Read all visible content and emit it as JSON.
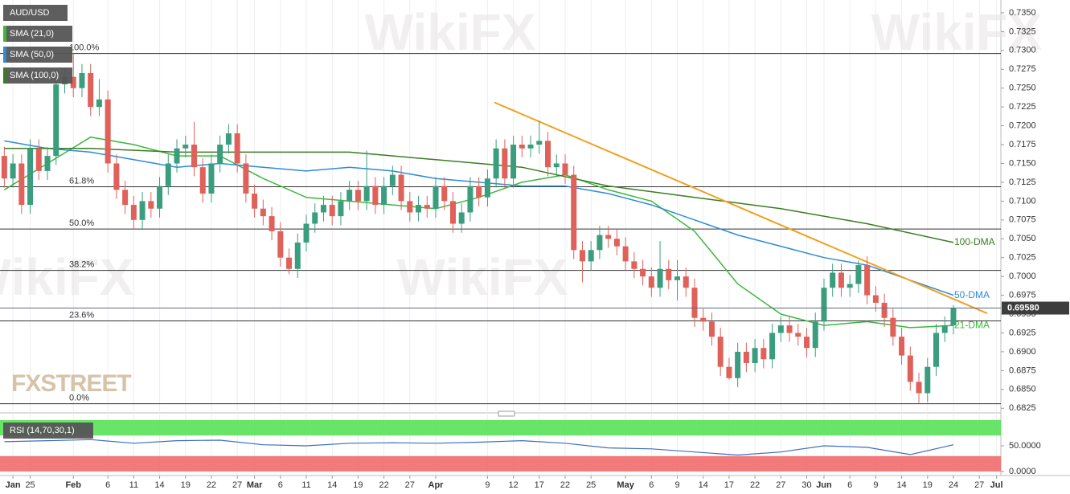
{
  "chart_data": [
    {
      "type": "candlestick",
      "series": [
        {
          "name": "AUD/USD",
          "up_color": "#3a9e7e",
          "down_color": "#e0605a",
          "x": [
            0,
            1,
            2,
            3,
            4,
            5,
            6,
            7,
            8,
            9,
            10,
            11,
            12,
            13,
            14,
            15,
            16,
            17,
            18,
            19,
            20,
            21,
            22,
            23,
            24,
            25,
            26,
            27,
            28,
            29,
            30,
            31,
            32,
            33,
            34,
            35,
            36,
            37,
            38,
            39,
            40,
            41,
            42,
            43,
            44,
            45,
            46,
            47,
            48,
            49,
            50,
            51,
            52,
            53,
            54,
            55,
            56,
            57,
            58,
            59,
            60,
            61,
            62,
            63,
            64,
            65,
            66,
            67,
            68,
            69,
            70,
            71,
            72,
            73,
            74,
            75,
            76,
            77,
            78,
            79,
            80,
            81,
            82,
            83,
            84,
            85,
            86,
            87,
            88,
            89,
            90,
            91,
            92,
            93,
            94,
            95,
            96,
            97,
            98,
            99,
            100,
            101,
            102,
            103,
            104,
            105,
            106,
            107,
            108,
            109,
            110
          ],
          "open": [
            0.716,
            0.713,
            0.715,
            0.7095,
            0.717,
            0.714,
            0.716,
            0.7255,
            0.7265,
            0.725,
            0.727,
            0.7225,
            0.7235,
            0.715,
            0.7115,
            0.7095,
            0.7075,
            0.71,
            0.709,
            0.712,
            0.715,
            0.717,
            0.7175,
            0.7145,
            0.711,
            0.715,
            0.7175,
            0.719,
            0.715,
            0.711,
            0.709,
            0.708,
            0.706,
            0.7025,
            0.701,
            0.7045,
            0.707,
            0.7085,
            0.7095,
            0.708,
            0.71,
            0.7115,
            0.71,
            0.712,
            0.7095,
            0.712,
            0.7135,
            0.71,
            0.7085,
            0.7095,
            0.709,
            0.712,
            0.71,
            0.707,
            0.7085,
            0.712,
            0.7105,
            0.713,
            0.717,
            0.713,
            0.7175,
            0.717,
            0.7175,
            0.718,
            0.7145,
            0.715,
            0.7135,
            0.7035,
            0.702,
            0.7035,
            0.7055,
            0.705,
            0.704,
            0.702,
            0.701,
            0.7,
            0.6985,
            0.701,
            0.6995,
            0.7,
            0.6985,
            0.6945,
            0.694,
            0.692,
            0.688,
            0.6865,
            0.69,
            0.6885,
            0.6905,
            0.689,
            0.6925,
            0.6935,
            0.6925,
            0.692,
            0.6905,
            0.694,
            0.6985,
            0.7005,
            0.6985,
            0.699,
            0.7015,
            0.6975,
            0.6965,
            0.6945,
            0.692,
            0.6895,
            0.686,
            0.6845,
            0.688,
            0.6925,
            0.6935
          ],
          "high": [
            0.7172,
            0.7162,
            0.7162,
            0.7182,
            0.7182,
            0.7172,
            0.7267,
            0.7277,
            0.7296,
            0.7282,
            0.7282,
            0.7262,
            0.7247,
            0.7162,
            0.7127,
            0.7107,
            0.7112,
            0.7112,
            0.7132,
            0.7162,
            0.7182,
            0.7187,
            0.7205,
            0.7157,
            0.7162,
            0.7187,
            0.7202,
            0.7202,
            0.7162,
            0.7122,
            0.7102,
            0.7092,
            0.7072,
            0.7037,
            0.7057,
            0.7082,
            0.7097,
            0.7107,
            0.7107,
            0.7112,
            0.7127,
            0.7127,
            0.7167,
            0.7132,
            0.7132,
            0.7147,
            0.7147,
            0.7112,
            0.7107,
            0.7107,
            0.7132,
            0.7132,
            0.7112,
            0.7097,
            0.7132,
            0.7132,
            0.7142,
            0.7182,
            0.7182,
            0.7187,
            0.7187,
            0.7187,
            0.7207,
            0.7192,
            0.7162,
            0.7162,
            0.7147,
            0.7047,
            0.7047,
            0.7067,
            0.7067,
            0.7062,
            0.7052,
            0.7032,
            0.7022,
            0.7012,
            0.7047,
            0.7022,
            0.7022,
            0.7012,
            0.6997,
            0.6957,
            0.6952,
            0.6932,
            0.6892,
            0.6912,
            0.6912,
            0.6917,
            0.6917,
            0.6937,
            0.6947,
            0.6947,
            0.6937,
            0.6932,
            0.6952,
            0.6997,
            0.7017,
            0.7017,
            0.7002,
            0.7021,
            0.7027,
            0.6987,
            0.6977,
            0.6957,
            0.6932,
            0.6907,
            0.6872,
            0.6892,
            0.6937,
            0.6947,
            0.6962
          ],
          "low": [
            0.7118,
            0.7118,
            0.7083,
            0.7083,
            0.7128,
            0.7128,
            0.7148,
            0.7243,
            0.7238,
            0.7238,
            0.7213,
            0.7213,
            0.7138,
            0.7103,
            0.7083,
            0.7063,
            0.7063,
            0.7078,
            0.7078,
            0.7108,
            0.7138,
            0.7158,
            0.7133,
            0.7098,
            0.7098,
            0.7138,
            0.7163,
            0.7138,
            0.7098,
            0.7078,
            0.7068,
            0.7048,
            0.7013,
            0.7003,
            0.6998,
            0.7033,
            0.7058,
            0.7073,
            0.7068,
            0.7068,
            0.7088,
            0.7088,
            0.7088,
            0.7083,
            0.7083,
            0.7108,
            0.7088,
            0.7073,
            0.7073,
            0.7078,
            0.7078,
            0.7088,
            0.7058,
            0.7058,
            0.7073,
            0.7093,
            0.7093,
            0.7118,
            0.7118,
            0.7118,
            0.7158,
            0.7158,
            0.7163,
            0.7133,
            0.7133,
            0.7123,
            0.7023,
            0.6992,
            0.7008,
            0.7023,
            0.7038,
            0.7028,
            0.7008,
            0.6998,
            0.6988,
            0.6973,
            0.6973,
            0.6983,
            0.6968,
            0.6973,
            0.6933,
            0.6928,
            0.6908,
            0.6868,
            0.6863,
            0.6853,
            0.6873,
            0.6873,
            0.6878,
            0.6878,
            0.6913,
            0.6913,
            0.6908,
            0.6893,
            0.6893,
            0.6928,
            0.6973,
            0.6973,
            0.6973,
            0.6978,
            0.6963,
            0.6953,
            0.6933,
            0.6908,
            0.6883,
            0.6848,
            0.6832,
            0.6833,
            0.6868,
            0.6913,
            0.6923
          ],
          "close": [
            0.713,
            0.715,
            0.7095,
            0.717,
            0.714,
            0.716,
            0.7255,
            0.7265,
            0.725,
            0.727,
            0.7225,
            0.7235,
            0.715,
            0.7115,
            0.7095,
            0.7075,
            0.71,
            0.709,
            0.712,
            0.715,
            0.717,
            0.7175,
            0.7145,
            0.711,
            0.715,
            0.7175,
            0.719,
            0.715,
            0.711,
            0.709,
            0.708,
            0.706,
            0.7025,
            0.701,
            0.7045,
            0.707,
            0.7085,
            0.7095,
            0.708,
            0.71,
            0.7115,
            0.71,
            0.712,
            0.7095,
            0.712,
            0.7135,
            0.71,
            0.7085,
            0.7095,
            0.709,
            0.712,
            0.71,
            0.707,
            0.7085,
            0.712,
            0.7105,
            0.713,
            0.717,
            0.713,
            0.7175,
            0.717,
            0.7175,
            0.718,
            0.7145,
            0.715,
            0.7135,
            0.7035,
            0.702,
            0.7035,
            0.7055,
            0.705,
            0.704,
            0.702,
            0.701,
            0.7,
            0.6985,
            0.701,
            0.6995,
            0.7,
            0.6985,
            0.6945,
            0.694,
            0.692,
            0.688,
            0.6865,
            0.69,
            0.6885,
            0.6905,
            0.689,
            0.6925,
            0.6935,
            0.6925,
            0.692,
            0.6905,
            0.694,
            0.6985,
            0.7005,
            0.6985,
            0.699,
            0.7015,
            0.6975,
            0.6965,
            0.6945,
            0.692,
            0.6895,
            0.686,
            0.6845,
            0.688,
            0.6925,
            0.6935,
            0.6958
          ]
        }
      ],
      "lines": [
        {
          "name": "SMA (21,0)",
          "label": "21-DMA",
          "color": "#3cb83c",
          "x": [
            0,
            5,
            10,
            15,
            20,
            25,
            30,
            35,
            40,
            45,
            50,
            55,
            60,
            65,
            70,
            75,
            80,
            85,
            90,
            95,
            100,
            105,
            110
          ],
          "values": [
            0.7115,
            0.715,
            0.7185,
            0.7175,
            0.716,
            0.716,
            0.713,
            0.7105,
            0.71,
            0.7095,
            0.709,
            0.7105,
            0.7125,
            0.7135,
            0.7115,
            0.71,
            0.706,
            0.699,
            0.695,
            0.6935,
            0.694,
            0.6932,
            0.6935
          ]
        },
        {
          "name": "SMA (50,0)",
          "label": "50-DMA",
          "color": "#2e8bd6",
          "x": [
            0,
            5,
            10,
            15,
            20,
            25,
            30,
            35,
            40,
            45,
            50,
            55,
            60,
            65,
            70,
            75,
            80,
            85,
            90,
            95,
            100,
            105,
            110
          ],
          "values": [
            0.718,
            0.717,
            0.7165,
            0.7155,
            0.7145,
            0.715,
            0.7145,
            0.714,
            0.7145,
            0.714,
            0.713,
            0.7125,
            0.712,
            0.712,
            0.711,
            0.7095,
            0.7075,
            0.7055,
            0.704,
            0.7025,
            0.7015,
            0.6995,
            0.6975
          ]
        },
        {
          "name": "SMA (100,0)",
          "label": "100-DMA",
          "color": "#3a7d22",
          "x": [
            0,
            10,
            20,
            30,
            40,
            50,
            60,
            70,
            80,
            90,
            100,
            110
          ],
          "values": [
            0.717,
            0.717,
            0.7165,
            0.7165,
            0.7165,
            0.7155,
            0.7145,
            0.712,
            0.7105,
            0.709,
            0.707,
            0.7045
          ]
        }
      ],
      "trendline": {
        "color": "#f0a020",
        "x": [
          56.8,
          113.9
        ],
        "values": [
          0.7231,
          0.6951
        ]
      },
      "levels": [
        {
          "label": "100.0%",
          "value": 0.7296
        },
        {
          "label": "61.8%",
          "value": 0.7119
        },
        {
          "label": "50.0%",
          "value": 0.7063
        },
        {
          "label": "38.2%",
          "value": 0.7008
        },
        {
          "label": "23.6%",
          "value": 0.6941
        },
        {
          "label": "0.0%",
          "value": 0.6831
        }
      ],
      "last_price": {
        "value": 0.6958,
        "label": "0.69580"
      },
      "watermark": "WikiFX",
      "brand": "FXSTREET",
      "xlim": [
        -0.5,
        115.5
      ],
      "xticks": [
        {
          "value": 1,
          "label": "Jan"
        },
        {
          "value": 3,
          "label": "25"
        },
        {
          "value": 8,
          "label": "Feb"
        },
        {
          "value": 12,
          "label": "6"
        },
        {
          "value": 15,
          "label": "11"
        },
        {
          "value": 18,
          "label": "14"
        },
        {
          "value": 21,
          "label": "19"
        },
        {
          "value": 24,
          "label": "22"
        },
        {
          "value": 27,
          "label": "27"
        },
        {
          "value": 29,
          "label": "Mar"
        },
        {
          "value": 32,
          "label": "6"
        },
        {
          "value": 35,
          "label": "11"
        },
        {
          "value": 38,
          "label": "14"
        },
        {
          "value": 41,
          "label": "19"
        },
        {
          "value": 44,
          "label": "22"
        },
        {
          "value": 47,
          "label": "27"
        },
        {
          "value": 50,
          "label": "Apr"
        },
        {
          "value": 56,
          "label": "9"
        },
        {
          "value": 59,
          "label": "12"
        },
        {
          "value": 62,
          "label": "17"
        },
        {
          "value": 65,
          "label": "22"
        },
        {
          "value": 68,
          "label": "25"
        },
        {
          "value": 72,
          "label": "May"
        },
        {
          "value": 75,
          "label": "6"
        },
        {
          "value": 78,
          "label": "9"
        },
        {
          "value": 81,
          "label": "14"
        },
        {
          "value": 84,
          "label": "17"
        },
        {
          "value": 87,
          "label": "22"
        },
        {
          "value": 90,
          "label": "27"
        },
        {
          "value": 93,
          "label": "30"
        },
        {
          "value": 95,
          "label": "Jun"
        },
        {
          "value": 98,
          "label": "6"
        },
        {
          "value": 101,
          "label": "9"
        },
        {
          "value": 104,
          "label": "14"
        },
        {
          "value": 107,
          "label": "19"
        },
        {
          "value": 110,
          "label": "24"
        },
        {
          "value": 113,
          "label": "27"
        },
        {
          "value": 115,
          "label": "Jul"
        }
      ],
      "ylim": [
        0.6821,
        0.7367
      ],
      "yticks": [
        {
          "value": 0.6825,
          "label": "0.6825"
        },
        {
          "value": 0.685,
          "label": "0.6850"
        },
        {
          "value": 0.6875,
          "label": "0.6875"
        },
        {
          "value": 0.69,
          "label": "0.6900"
        },
        {
          "value": 0.6925,
          "label": "0.6925"
        },
        {
          "value": 0.695,
          "label": "0.6950"
        },
        {
          "value": 0.6975,
          "label": "0.6975"
        },
        {
          "value": 0.7,
          "label": "0.7000"
        },
        {
          "value": 0.7025,
          "label": "0.7025"
        },
        {
          "value": 0.705,
          "label": "0.7050"
        },
        {
          "value": 0.7075,
          "label": "0.7075"
        },
        {
          "value": 0.71,
          "label": "0.7100"
        },
        {
          "value": 0.7125,
          "label": "0.7125"
        },
        {
          "value": 0.715,
          "label": "0.7150"
        },
        {
          "value": 0.7175,
          "label": "0.7175"
        },
        {
          "value": 0.72,
          "label": "0.7200"
        },
        {
          "value": 0.7225,
          "label": "0.7225"
        },
        {
          "value": 0.725,
          "label": "0.7250"
        },
        {
          "value": 0.7275,
          "label": "0.7275"
        },
        {
          "value": 0.73,
          "label": "0.7300"
        },
        {
          "value": 0.7325,
          "label": "0.7325"
        },
        {
          "value": 0.735,
          "label": "0.7350"
        }
      ],
      "grid": true
    },
    {
      "type": "line",
      "series": [
        {
          "name": "RSI (14,70,30,1)",
          "color": "#3a6fc4",
          "x": [
            0,
            5,
            10,
            15,
            20,
            25,
            30,
            35,
            40,
            45,
            50,
            55,
            60,
            65,
            70,
            75,
            80,
            85,
            90,
            95,
            100,
            105,
            110
          ],
          "values": [
            58,
            60,
            62,
            55,
            60,
            61,
            52,
            50,
            55,
            56,
            55,
            57,
            60,
            55,
            46,
            44,
            38,
            32,
            38,
            50,
            47,
            33,
            52
          ]
        }
      ],
      "overbought": 70,
      "oversold": 30,
      "overbought_color": "#4ee04e",
      "oversold_color": "#f26b6b",
      "ylim": [
        0,
        100
      ],
      "yticks": [
        {
          "value": 50,
          "label": "50.0000"
        },
        {
          "value": 0,
          "label": "0.0000"
        }
      ]
    }
  ]
}
